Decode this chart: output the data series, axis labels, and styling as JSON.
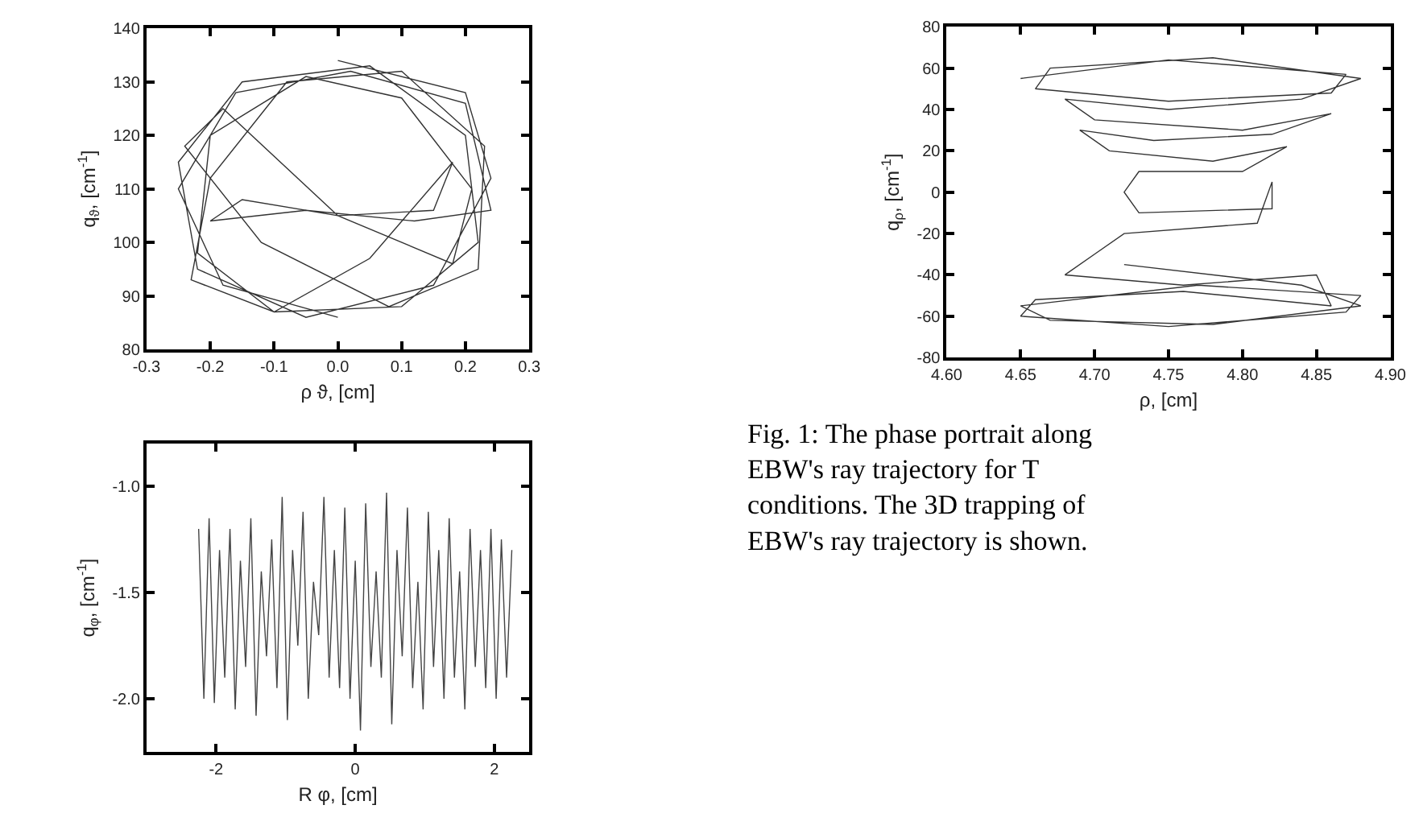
{
  "chart_data": [
    {
      "type": "line",
      "xlabel": "ρ ϑ, [cm]",
      "ylabel": "q$_{ϑ}$, [cm$^{-1}$]",
      "xlim": [
        -0.3,
        0.3
      ],
      "ylim": [
        80,
        140
      ],
      "xticks": [
        {
          "value": -0.3,
          "label": "-0.3"
        },
        {
          "value": -0.2,
          "label": "-0.2"
        },
        {
          "value": -0.1,
          "label": "-0.1"
        },
        {
          "value": 0,
          "label": "0.0"
        },
        {
          "value": 0.1,
          "label": "0.1"
        },
        {
          "value": 0.2,
          "label": "0.2"
        },
        {
          "value": 0.3,
          "label": "0.3"
        }
      ],
      "yticks": [
        80,
        90,
        100,
        110,
        120,
        130,
        140
      ],
      "marker": "none",
      "line_style": "solid",
      "series": [
        {
          "color": "#333333",
          "x": [
            0.0,
            0.2,
            0.24,
            0.15,
            -0.05,
            -0.22,
            -0.25,
            -0.15,
            0.05,
            0.2,
            0.22,
            0.1,
            -0.1,
            -0.22,
            -0.2,
            -0.05,
            0.1,
            0.21,
            0.18,
            0.0,
            -0.18,
            -0.24,
            -0.12,
            0.08,
            0.22,
            0.23,
            0.1,
            -0.08,
            -0.2,
            -0.23,
            -0.1,
            0.05,
            0.18,
            0.15,
            0.0,
            -0.15,
            -0.2,
            -0.05,
            0.12,
            0.24,
            0.2,
            0.02,
            -0.16,
            -0.25,
            -0.18,
            0.0
          ],
          "values": [
            134,
            128,
            112,
            92,
            86,
            95,
            115,
            130,
            133,
            120,
            100,
            88,
            87,
            98,
            120,
            131,
            127,
            110,
            96,
            105,
            125,
            118,
            100,
            88,
            95,
            118,
            132,
            130,
            112,
            93,
            87,
            97,
            115,
            106,
            105,
            108,
            104,
            106,
            104,
            106,
            126,
            132,
            128,
            110,
            92,
            86
          ]
        }
      ]
    },
    {
      "type": "line",
      "xlabel": "ρ, [cm]",
      "ylabel": "q$_{ρ}$, [cm$^{-1}$]",
      "xlim": [
        4.6,
        4.9
      ],
      "ylim": [
        -80,
        80
      ],
      "xticks": [
        {
          "value": 4.6,
          "label": "4.60"
        },
        {
          "value": 4.65,
          "label": "4.65"
        },
        {
          "value": 4.7,
          "label": "4.70"
        },
        {
          "value": 4.75,
          "label": "4.75"
        },
        {
          "value": 4.8,
          "label": "4.80"
        },
        {
          "value": 4.85,
          "label": "4.85"
        },
        {
          "value": 4.9,
          "label": "4.90"
        }
      ],
      "yticks": [
        -80,
        -60,
        -40,
        -20,
        0,
        20,
        40,
        60,
        80
      ],
      "marker": "none",
      "line_style": "solid",
      "annotations": [
        "Fig. 1: The phase portrait along\nEBW's ray trajectory for T\nconditions. The 3D trapping of\nEBW's ray trajectory is shown."
      ],
      "series": [
        {
          "color": "#333333",
          "x": [
            4.65,
            4.75,
            4.87,
            4.86,
            4.75,
            4.66,
            4.67,
            4.78,
            4.88,
            4.84,
            4.75,
            4.68,
            4.7,
            4.8,
            4.86,
            4.82,
            4.74,
            4.69,
            4.71,
            4.78,
            4.83,
            4.8,
            4.73,
            4.72,
            4.73,
            4.82,
            4.82,
            4.81,
            4.72,
            4.7,
            4.68,
            4.76,
            4.85,
            4.86,
            4.76,
            4.66,
            4.65,
            4.75,
            4.87,
            4.88,
            4.77,
            4.65,
            4.67,
            4.78,
            4.88,
            4.84,
            4.72
          ],
          "values": [
            55,
            64,
            57,
            48,
            44,
            50,
            60,
            65,
            55,
            45,
            40,
            45,
            35,
            30,
            38,
            28,
            25,
            30,
            20,
            15,
            22,
            10,
            10,
            0,
            -10,
            -8,
            5,
            -15,
            -20,
            -30,
            -40,
            -45,
            -40,
            -55,
            -48,
            -52,
            -60,
            -65,
            -58,
            -50,
            -45,
            -55,
            -62,
            -64,
            -55,
            -45,
            -35
          ]
        }
      ]
    },
    {
      "type": "line",
      "xlabel": "R φ, [cm]",
      "ylabel": "q$_{φ}$, [cm$^{-1}$]",
      "xlim": [
        -3.0,
        2.5
      ],
      "ylim": [
        -2.25,
        -0.8
      ],
      "xticks": [
        -2,
        0,
        2
      ],
      "yticks": [
        {
          "value": -2.0,
          "label": "-2.0"
        },
        {
          "value": -1.5,
          "label": "-1.5"
        },
        {
          "value": -1.0,
          "label": "-1.0"
        }
      ],
      "marker": "none",
      "line_style": "solid",
      "series": [
        {
          "color": "#444444",
          "x": [
            -2.25,
            -2.175,
            -2.1,
            -2.025,
            -1.95,
            -1.875,
            -1.8,
            -1.725,
            -1.65,
            -1.575,
            -1.5,
            -1.425,
            -1.35,
            -1.275,
            -1.2,
            -1.125,
            -1.05,
            -0.975,
            -0.9,
            -0.825,
            -0.75,
            -0.675,
            -0.6,
            -0.525,
            -0.45,
            -0.375,
            -0.3,
            -0.225,
            -0.15,
            -0.075,
            0,
            0.075,
            0.15,
            0.225,
            0.3,
            0.375,
            0.45,
            0.525,
            0.6,
            0.675,
            0.75,
            0.825,
            0.9,
            0.975,
            1.05,
            1.125,
            1.2,
            1.275,
            1.35,
            1.425,
            1.5,
            1.575,
            1.65,
            1.725,
            1.8,
            1.875,
            1.95,
            2.025,
            2.1,
            2.175,
            2.25
          ],
          "values": [
            -1.2,
            -2.0,
            -1.15,
            -2.02,
            -1.3,
            -1.9,
            -1.2,
            -2.05,
            -1.35,
            -1.85,
            -1.15,
            -2.08,
            -1.4,
            -1.8,
            -1.25,
            -1.95,
            -1.05,
            -2.1,
            -1.3,
            -1.75,
            -1.12,
            -2.0,
            -1.45,
            -1.7,
            -1.05,
            -1.9,
            -1.3,
            -1.95,
            -1.1,
            -2.0,
            -1.35,
            -2.15,
            -1.08,
            -1.85,
            -1.4,
            -1.9,
            -1.03,
            -2.12,
            -1.3,
            -1.8,
            -1.1,
            -1.95,
            -1.45,
            -2.05,
            -1.12,
            -1.85,
            -1.3,
            -2.0,
            -1.15,
            -1.9,
            -1.4,
            -2.05,
            -1.2,
            -1.85,
            -1.3,
            -1.95,
            -1.2,
            -2.0,
            -1.25,
            -1.9,
            -1.3
          ]
        }
      ]
    }
  ]
}
